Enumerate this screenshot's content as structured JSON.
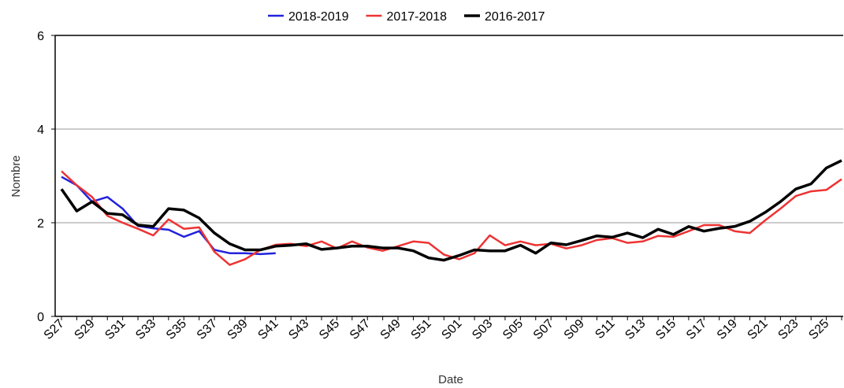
{
  "chart_data": {
    "type": "line",
    "x_label": "Date",
    "y_label": "Nombre",
    "categories": [
      "S27",
      null,
      "S29",
      null,
      "S31",
      null,
      "S33",
      null,
      "S35",
      null,
      "S37",
      null,
      "S39",
      null,
      "S41",
      null,
      "S43",
      null,
      "S45",
      null,
      "S47",
      null,
      "S49",
      null,
      "S51",
      null,
      "S01",
      null,
      "S03",
      null,
      "S05",
      null,
      "S07",
      null,
      "S09",
      null,
      "S11",
      null,
      "S13",
      null,
      "S15",
      null,
      "S17",
      null,
      "S19",
      null,
      "S21",
      null,
      "S23",
      null,
      "S25",
      null
    ],
    "series": [
      {
        "name": "2018-2019",
        "color": "#2222dd",
        "values": [
          2.98,
          2.8,
          2.45,
          2.55,
          2.3,
          1.93,
          1.88,
          1.85,
          1.7,
          1.82,
          1.42,
          1.35,
          1.35,
          1.33,
          1.35,
          null,
          null,
          null,
          null,
          null,
          null,
          null,
          null,
          null,
          null,
          null,
          null,
          null,
          null,
          null,
          null,
          null,
          null,
          null,
          null,
          null,
          null,
          null,
          null,
          null,
          null,
          null,
          null,
          null,
          null,
          null,
          null,
          null,
          null,
          null,
          null,
          null
        ]
      },
      {
        "name": "2017-2018",
        "color": "#ee3333",
        "values": [
          3.1,
          2.8,
          2.55,
          2.15,
          2.0,
          1.87,
          1.73,
          2.07,
          1.87,
          1.9,
          1.38,
          1.1,
          1.22,
          1.42,
          1.53,
          1.55,
          1.5,
          1.6,
          1.45,
          1.6,
          1.47,
          1.4,
          1.5,
          1.6,
          1.57,
          1.32,
          1.22,
          1.35,
          1.73,
          1.52,
          1.6,
          1.52,
          1.55,
          1.45,
          1.52,
          1.63,
          1.67,
          1.57,
          1.6,
          1.72,
          1.7,
          1.82,
          1.95,
          1.95,
          1.82,
          1.78,
          2.05,
          2.3,
          2.57,
          2.67,
          2.7,
          2.93
        ]
      },
      {
        "name": "2016-2017",
        "color": "#000000",
        "values": [
          2.72,
          2.25,
          2.45,
          2.2,
          2.17,
          1.95,
          1.92,
          2.3,
          2.27,
          2.1,
          1.78,
          1.55,
          1.42,
          1.42,
          1.5,
          1.52,
          1.55,
          1.43,
          1.46,
          1.5,
          1.5,
          1.46,
          1.46,
          1.4,
          1.25,
          1.2,
          1.3,
          1.42,
          1.4,
          1.4,
          1.52,
          1.35,
          1.57,
          1.53,
          1.62,
          1.72,
          1.69,
          1.78,
          1.68,
          1.86,
          1.75,
          1.92,
          1.82,
          1.88,
          1.92,
          2.03,
          2.22,
          2.45,
          2.72,
          2.83,
          3.17,
          3.33
        ]
      }
    ],
    "ylim": [
      0,
      6
    ],
    "yticks": [
      0,
      2,
      4,
      6
    ],
    "grid": true,
    "legend": "top"
  }
}
